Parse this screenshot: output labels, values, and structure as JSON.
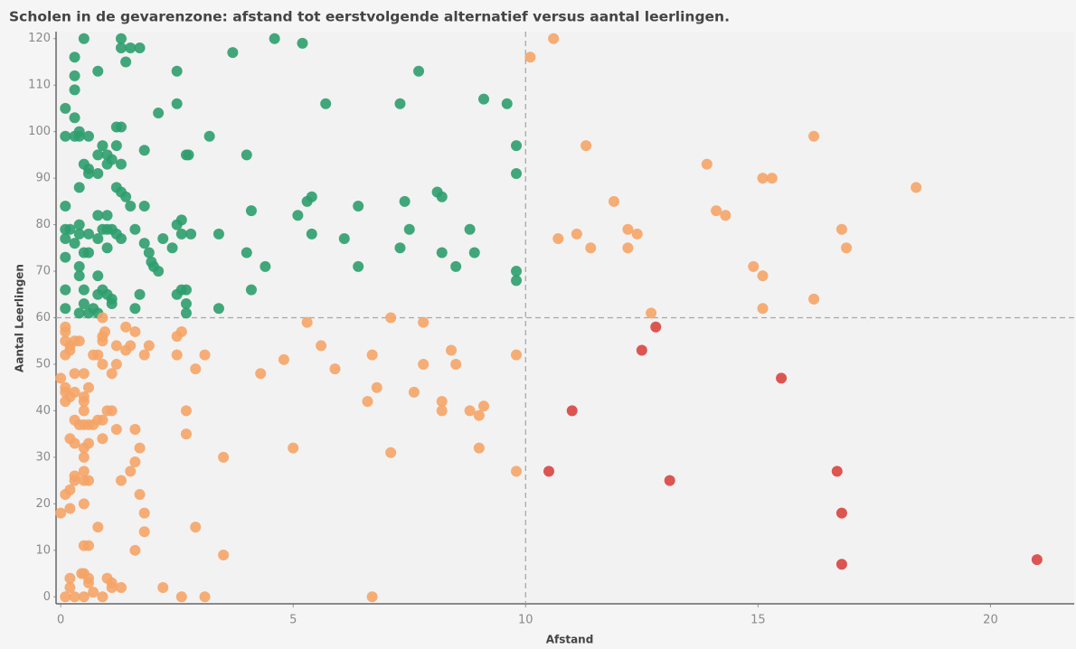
{
  "chart_data": {
    "type": "scatter",
    "title": "Scholen in de gevarenzone: afstand tot eerstvolgende alternatief versus aantal leerlingen.",
    "xlabel": "Afstand",
    "ylabel": "Aantal Leerlingen",
    "xlim": [
      -0.1,
      21.8
    ],
    "ylim": [
      -1.5,
      121.5
    ],
    "xticks": [
      0,
      5,
      10,
      15,
      20
    ],
    "yticks": [
      0,
      10,
      20,
      30,
      40,
      50,
      60,
      70,
      80,
      90,
      100,
      110,
      120
    ],
    "reference_lines": {
      "x": 10,
      "y": 60
    },
    "series": [
      {
        "color": "#2e9e6e",
        "x": [
          0.1,
          0.5,
          1.3,
          1.3,
          1.5,
          1.7,
          1.4,
          0.3,
          0.3,
          0.8,
          0.3,
          2.5,
          3.7,
          4.6,
          5.2,
          7.7,
          0.1,
          0.3,
          0.4,
          0.4,
          0.6,
          0.3,
          1.2,
          1.3,
          2.1,
          2.5,
          5.7,
          7.3,
          9.1,
          9.6,
          3.2,
          0.9,
          1.2,
          1.0,
          0.8,
          1.1,
          0.5,
          0.6,
          0.6,
          0.8,
          1.0,
          1.3,
          1.8,
          2.7,
          2.75,
          4.0,
          9.8,
          9.8,
          0.4,
          1.2,
          1.3,
          1.4,
          1.5,
          1.8,
          0.1,
          7.4,
          8.1,
          8.2,
          5.4,
          5.3,
          6.4,
          5.1,
          4.1,
          0.8,
          1.0,
          0.1,
          0.2,
          0.4,
          0.4,
          0.6,
          0.9,
          1.0,
          1.1,
          0.1,
          0.3,
          0.8,
          1.6,
          1.3,
          1.2,
          2.5,
          2.6,
          2.6,
          2.8,
          3.4,
          5.4,
          6.1,
          7.5,
          8.8,
          2.2,
          1.8,
          2.4,
          1.0,
          1.9,
          0.5,
          0.6,
          0.1,
          0.4,
          0.4,
          2.0,
          2.1,
          1.95,
          4.0,
          4.4,
          6.4,
          7.3,
          8.2,
          8.9,
          8.5,
          9.8,
          9.8,
          0.1,
          0.5,
          0.8,
          0.8,
          0.9,
          1.0,
          1.1,
          1.1,
          1.7,
          2.5,
          2.6,
          2.7,
          2.7,
          4.1,
          0.1,
          0.4,
          0.5,
          0.6,
          0.7,
          0.8,
          1.6,
          2.7,
          3.4
        ],
        "values": [
          105,
          120,
          120,
          118,
          118,
          118,
          115,
          116,
          112,
          113,
          109,
          113,
          117,
          120,
          119,
          113,
          99,
          99,
          99,
          100,
          99,
          103,
          101,
          101,
          104,
          106,
          106,
          106,
          107,
          106,
          99,
          97,
          97,
          95,
          95,
          94,
          93,
          92,
          91,
          91,
          93,
          93,
          96,
          95,
          95,
          95,
          97,
          91,
          88,
          88,
          87,
          86,
          84,
          84,
          84,
          85,
          87,
          86,
          86,
          85,
          84,
          82,
          83,
          82,
          82,
          79,
          79,
          80,
          78,
          78,
          79,
          79,
          79,
          77,
          76,
          77,
          79,
          77,
          78,
          80,
          81,
          78,
          78,
          78,
          78,
          77,
          79,
          79,
          77,
          76,
          75,
          75,
          74,
          74,
          74,
          73,
          71,
          69,
          71,
          70,
          72,
          74,
          71,
          71,
          75,
          74,
          74,
          71,
          70,
          68,
          66,
          66,
          65,
          69,
          66,
          65,
          64,
          63,
          65,
          65,
          66,
          66,
          63,
          66,
          62,
          61,
          63,
          61,
          62,
          61,
          62,
          61,
          62
        ]
      },
      {
        "color": "#f5a467",
        "x": [
          10.6,
          10.1,
          11.3,
          16.2,
          13.9,
          15.1,
          15.3,
          18.4,
          11.9,
          14.1,
          14.3,
          12.2,
          12.4,
          11.1,
          10.7,
          16.8,
          16.9,
          11.4,
          12.2,
          14.9,
          15.1,
          16.2,
          15.1,
          12.7,
          9.8,
          0.1,
          0.1,
          0.1,
          0.2,
          0.2,
          0.1,
          0.4,
          0.3,
          0.9,
          0.9,
          0.9,
          0.95,
          1.4,
          1.6,
          1.5,
          1.2,
          1.4,
          0.7,
          0.8,
          1.2,
          0.9,
          1.8,
          1.9,
          1.1,
          0.5,
          0.3,
          0.0,
          0.1,
          0.1,
          0.2,
          0.1,
          0.3,
          0.5,
          0.6,
          0.5,
          0.5,
          0.4,
          0.5,
          0.6,
          0.7,
          0.3,
          0.8,
          0.9,
          1.0,
          1.1,
          0.9,
          1.2,
          1.6,
          1.7,
          0.2,
          0.3,
          0.5,
          0.6,
          0.5,
          1.6,
          1.5,
          0.5,
          0.3,
          0.3,
          0.5,
          0.6,
          1.3,
          0.1,
          0.2,
          1.7,
          0.5,
          0.2,
          0.0,
          1.8,
          1.8,
          0.8,
          0.5,
          0.6,
          1.6,
          0.2,
          0.5,
          0.45,
          0.6,
          0.6,
          1.0,
          1.1,
          1.1,
          1.3,
          2.2,
          0.2,
          0.1,
          0.3,
          0.5,
          0.7,
          0.9,
          2.6,
          3.1,
          6.7,
          2.9,
          3.5,
          3.5,
          2.7,
          2.7,
          2.5,
          2.6,
          2.5,
          2.9,
          3.1,
          4.3,
          4.8,
          5.0,
          5.3,
          5.6,
          5.9,
          6.7,
          6.6,
          6.8,
          7.1,
          7.1,
          7.6,
          7.8,
          7.8,
          8.2,
          8.2,
          8.4,
          8.5,
          8.8,
          9.0,
          9.1,
          9.0,
          9.8
        ],
        "values": [
          120,
          116,
          97,
          99,
          93,
          90,
          90,
          88,
          85,
          83,
          82,
          79,
          78,
          78,
          77,
          79,
          75,
          75,
          75,
          71,
          69,
          64,
          62,
          61,
          52,
          58,
          57,
          55,
          54,
          53,
          52,
          55,
          55,
          60,
          56,
          55,
          57,
          58,
          57,
          54,
          54,
          53,
          52,
          52,
          50,
          50,
          52,
          54,
          48,
          48,
          48,
          47,
          45,
          44,
          43,
          42,
          44,
          43,
          45,
          42,
          40,
          37,
          37,
          37,
          37,
          38,
          38,
          38,
          40,
          40,
          34,
          36,
          36,
          32,
          34,
          33,
          32,
          33,
          30,
          29,
          27,
          27,
          26,
          25,
          25,
          25,
          25,
          22,
          23,
          22,
          20,
          19,
          18,
          18,
          14,
          15,
          11,
          11,
          10,
          4,
          5,
          5,
          4,
          3,
          4,
          3,
          2,
          2,
          2,
          2,
          0,
          0,
          0,
          1,
          0,
          0,
          0,
          0,
          15,
          9,
          30,
          35,
          40,
          56,
          57,
          52,
          49,
          52,
          48,
          51,
          32,
          59,
          54,
          49,
          52,
          42,
          45,
          60,
          31,
          44,
          50,
          59,
          42,
          40,
          53,
          50,
          40,
          39,
          41,
          32,
          27
        ]
      },
      {
        "color": "#d9443f",
        "x": [
          12.8,
          12.5,
          15.5,
          11.0,
          10.5,
          13.1,
          16.7,
          16.8,
          16.8,
          21.0
        ],
        "values": [
          58,
          53,
          47,
          40,
          27,
          25,
          27,
          18,
          7,
          8
        ]
      }
    ]
  }
}
